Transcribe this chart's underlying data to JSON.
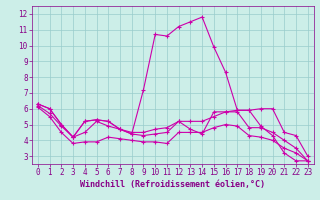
{
  "xlabel": "Windchill (Refroidissement éolien,°C)",
  "ylabel": "",
  "bg_color": "#cceee8",
  "line_color": "#cc00aa",
  "grid_color": "#99cccc",
  "xlim": [
    -0.5,
    23.5
  ],
  "ylim": [
    2.5,
    12.5
  ],
  "xticks": [
    0,
    1,
    2,
    3,
    4,
    5,
    6,
    7,
    8,
    9,
    10,
    11,
    12,
    13,
    14,
    15,
    16,
    17,
    18,
    19,
    20,
    21,
    22,
    23
  ],
  "yticks": [
    3,
    4,
    5,
    6,
    7,
    8,
    9,
    10,
    11,
    12
  ],
  "line1_x": [
    0,
    1,
    2,
    3,
    4,
    5,
    6,
    7,
    8,
    9,
    10,
    11,
    12,
    13,
    14,
    15,
    16,
    17,
    18,
    19,
    20,
    21,
    22,
    23
  ],
  "line1_y": [
    6.3,
    6.0,
    5.0,
    4.2,
    5.2,
    5.3,
    5.2,
    4.7,
    4.4,
    7.2,
    10.7,
    10.6,
    11.2,
    11.5,
    11.8,
    9.9,
    8.3,
    5.9,
    5.9,
    4.9,
    4.3,
    3.2,
    2.7,
    2.7
  ],
  "line2_x": [
    0,
    1,
    2,
    3,
    4,
    5,
    6,
    7,
    8,
    9,
    10,
    11,
    12,
    13,
    14,
    15,
    16,
    17,
    18,
    19,
    20,
    21,
    22,
    23
  ],
  "line2_y": [
    6.3,
    6.0,
    5.0,
    4.2,
    5.2,
    5.3,
    5.2,
    4.7,
    4.4,
    4.3,
    4.4,
    4.5,
    5.2,
    4.7,
    4.4,
    5.8,
    5.8,
    5.9,
    5.9,
    6.0,
    6.0,
    4.5,
    4.3,
    3.0
  ],
  "line3_x": [
    0,
    1,
    2,
    3,
    4,
    5,
    6,
    7,
    8,
    9,
    10,
    11,
    12,
    13,
    14,
    15,
    16,
    17,
    18,
    19,
    20,
    21,
    22,
    23
  ],
  "line3_y": [
    6.2,
    5.7,
    4.9,
    4.2,
    4.5,
    5.2,
    4.9,
    4.7,
    4.5,
    4.5,
    4.7,
    4.8,
    5.2,
    5.2,
    5.2,
    5.5,
    5.8,
    5.8,
    4.8,
    4.8,
    4.5,
    4.0,
    3.5,
    2.7
  ],
  "line4_x": [
    0,
    1,
    2,
    3,
    4,
    5,
    6,
    7,
    8,
    9,
    10,
    11,
    12,
    13,
    14,
    15,
    16,
    17,
    18,
    19,
    20,
    21,
    22,
    23
  ],
  "line4_y": [
    6.1,
    5.5,
    4.5,
    3.8,
    3.9,
    3.9,
    4.2,
    4.1,
    4.0,
    3.9,
    3.9,
    3.8,
    4.5,
    4.5,
    4.5,
    4.8,
    5.0,
    4.9,
    4.3,
    4.2,
    4.0,
    3.5,
    3.2,
    2.7
  ],
  "marker": "+",
  "markersize": 3,
  "linewidth": 0.8,
  "font_size_ticks": 5.5,
  "font_size_xlabel": 6.0
}
